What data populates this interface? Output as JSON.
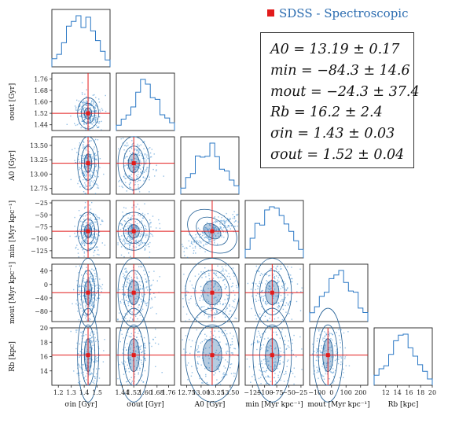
{
  "legend": {
    "label": "SDSS - Spectroscopic",
    "marker_color": "#e21b1b"
  },
  "stats": [
    "A0 = 13.19 ± 0.17",
    "min = −84.3 ± 14.6",
    "mout = −24.3 ± 37.4",
    "Rb = 16.2 ± 2.4",
    "σin = 1.43 ± 0.03",
    "σout = 1.52 ± 0.04"
  ],
  "chart_data": {
    "type": "scatter",
    "variant": "corner",
    "marker_color": "#e21b1b",
    "histogram_color": "#2b78c5",
    "params": [
      {
        "axis_label": "σin [Gyr]",
        "ylabel": "",
        "lim": [
          1.15,
          1.6
        ],
        "xticks": [
          "1.2",
          "1.3",
          "1.4",
          "1.5"
        ],
        "tickvals": [
          1.2,
          1.3,
          1.4,
          1.5
        ],
        "truth": 1.43,
        "sd": 0.03
      },
      {
        "axis_label": "σout [Gyr]",
        "ylabel": "σout [Gyr]",
        "lim": [
          1.4,
          1.8
        ],
        "xticks": [
          "1.44",
          "1.52",
          "1.60",
          "1.68",
          "1.76"
        ],
        "tickvals": [
          1.44,
          1.52,
          1.6,
          1.68,
          1.76
        ],
        "truth": 1.52,
        "sd": 0.04
      },
      {
        "axis_label": "A0 [Gyr]",
        "ylabel": "A0 [Gyr]",
        "lim": [
          12.65,
          13.65
        ],
        "xticks": [
          "12.75",
          "13.00",
          "13.25",
          "13.50"
        ],
        "tickvals": [
          12.75,
          13.0,
          13.25,
          13.5
        ],
        "truth": 13.19,
        "sd": 0.17
      },
      {
        "axis_label": "min [Myr kpc⁻¹]",
        "ylabel": "min [Myr kpc⁻¹]",
        "lim": [
          -140,
          -20
        ],
        "xticks": [
          "−125",
          "−100",
          "−75",
          "−50",
          "−25"
        ],
        "tickvals": [
          -125,
          -100,
          -75,
          -50,
          -25
        ],
        "truth": -84.3,
        "sd": 14.6
      },
      {
        "axis_label": "mout [Myr kpc⁻¹]",
        "ylabel": "mout [Myr kpc⁻¹]",
        "lim": [
          -150,
          250
        ],
        "xticks": [
          "−100",
          "0",
          "100",
          "200"
        ],
        "tickvals": [
          -100,
          0,
          100,
          200
        ],
        "truth": -24.3,
        "sd": 37.4
      },
      {
        "axis_label": "Rb [kpc]",
        "ylabel": "Rb [kpc]",
        "lim": [
          10,
          20
        ],
        "xticks": [
          "12",
          "14",
          "16",
          "18",
          "20"
        ],
        "tickvals": [
          12,
          14,
          16,
          18,
          20
        ],
        "truth": 16.2,
        "sd": 2.4
      }
    ],
    "row_ticks": {
      "1": [
        "1.44",
        "1.52",
        "1.60",
        "1.68",
        "1.76"
      ],
      "2": [
        "12.75",
        "13.00",
        "13.25",
        "13.50"
      ],
      "3": [
        "−125",
        "−100",
        "−75",
        "−50",
        "−25"
      ],
      "4": [
        "−80",
        "−40",
        "0",
        "40"
      ],
      "5": [
        "14",
        "16",
        "18",
        "20"
      ]
    },
    "row_tickvals": {
      "1": [
        1.44,
        1.52,
        1.6,
        1.68,
        1.76
      ],
      "2": [
        12.75,
        13.0,
        13.25,
        13.5
      ],
      "3": [
        -125,
        -100,
        -75,
        -50,
        -25
      ],
      "4": [
        -80,
        -40,
        0,
        40
      ],
      "5": [
        14,
        16,
        18,
        20
      ]
    },
    "row_lims": {
      "1": [
        1.4,
        1.8
      ],
      "2": [
        12.65,
        13.65
      ],
      "3": [
        -140,
        -20
      ],
      "4": [
        -110,
        60
      ],
      "5": [
        12,
        20
      ]
    }
  }
}
